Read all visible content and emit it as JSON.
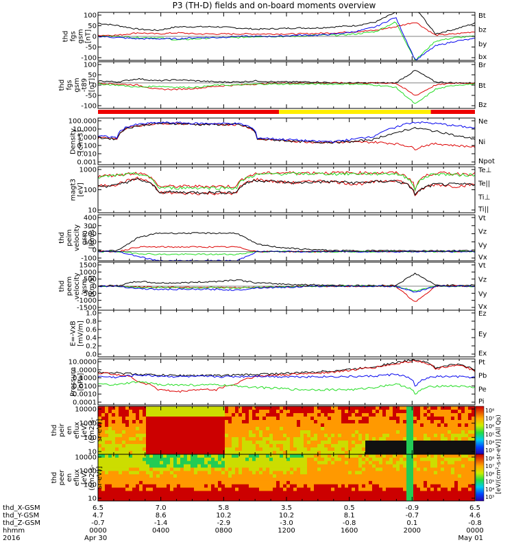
{
  "title": "P3 (TH-D) fields and on-board moments overview",
  "colors": {
    "black": "#000000",
    "red": "#dd0000",
    "green": "#22dd22",
    "blue": "#0000ee",
    "yellow": "#ffee00",
    "mode_red": "#ee0000"
  },
  "chart_data": [
    {
      "id": "fgs_gsm",
      "type": "line",
      "ylabel": [
        "thd",
        "fgs",
        "gsm",
        "[nT]"
      ],
      "ylim": [
        -100,
        100
      ],
      "yticks": [
        "100",
        "50",
        "0",
        "-50",
        "-100"
      ],
      "series": [
        {
          "name": "Bt",
          "color": "#000000",
          "values": [
            55,
            45,
            30,
            25,
            40,
            40,
            40,
            35,
            30,
            32,
            35,
            35,
            40,
            45,
            60,
            100,
            120,
            10,
            30,
            55
          ]
        },
        {
          "name": "bz",
          "color": "#dd0000",
          "values": [
            5,
            5,
            15,
            10,
            15,
            10,
            10,
            10,
            10,
            10,
            10,
            12,
            15,
            20,
            25,
            40,
            60,
            5,
            10,
            20
          ]
        },
        {
          "name": "by",
          "color": "#22dd22",
          "values": [
            0,
            0,
            -5,
            -5,
            -15,
            -10,
            -5,
            -5,
            0,
            0,
            0,
            5,
            5,
            10,
            20,
            60,
            -100,
            -20,
            -5,
            0
          ]
        },
        {
          "name": "bx",
          "color": "#0000ee",
          "values": [
            0,
            -5,
            -10,
            -10,
            -10,
            -5,
            -5,
            0,
            0,
            0,
            5,
            5,
            10,
            20,
            40,
            80,
            -100,
            -40,
            -20,
            -10
          ]
        }
      ]
    },
    {
      "id": "fgs_gsm_t89",
      "type": "line",
      "ylabel": [
        "thd",
        "fgs",
        "gsm",
        "-t89",
        "[nT]"
      ],
      "ylim": [
        -120,
        100
      ],
      "yticks": [
        "100",
        "50",
        "0",
        "-50",
        "-100"
      ],
      "series": [
        {
          "name": "Br",
          "color": "#000000",
          "values": [
            10,
            5,
            20,
            10,
            15,
            10,
            5,
            5,
            10,
            5,
            5,
            5,
            0,
            0,
            0,
            0,
            60,
            5,
            0,
            0
          ]
        },
        {
          "name": "Bt",
          "color": "#dd0000",
          "values": [
            0,
            -5,
            -10,
            -30,
            -30,
            -25,
            -15,
            -10,
            -5,
            0,
            0,
            0,
            0,
            0,
            0,
            0,
            -60,
            -10,
            0,
            0
          ]
        },
        {
          "name": "Bz",
          "color": "#22dd22",
          "values": [
            -5,
            -10,
            -20,
            -15,
            -20,
            -20,
            -10,
            -10,
            -5,
            -5,
            -5,
            -5,
            -5,
            -5,
            -10,
            -20,
            -100,
            -30,
            -10,
            -5
          ]
        }
      ]
    },
    {
      "id": "density",
      "type": "line",
      "scale": "log",
      "ylabel": [
        "Density",
        "[cm-3]"
      ],
      "ylim": [
        0.001,
        1000
      ],
      "yticks": [
        "100.000",
        "10.000",
        "1.000",
        "0.100",
        "0.010",
        "0.001"
      ],
      "series": [
        {
          "name": "Ne",
          "color": "#dd0000",
          "values": [
            3,
            2,
            100,
            200,
            200,
            150,
            150,
            150,
            2,
            1.5,
            1,
            0.8,
            0.8,
            0.8,
            0.8,
            0.5,
            0.1,
            0.5,
            0.3,
            0.2
          ]
        },
        {
          "name": "Ni",
          "color": "#000000",
          "values": [
            3,
            2,
            100,
            200,
            200,
            150,
            150,
            150,
            2,
            1.5,
            1,
            0.8,
            0.8,
            1,
            2,
            10,
            50,
            20,
            5,
            2
          ]
        },
        {
          "name": "Npot",
          "color": "#0000ee",
          "values": [
            5,
            3,
            150,
            250,
            250,
            200,
            200,
            200,
            3,
            2,
            1.5,
            1,
            1,
            2,
            5,
            50,
            300,
            200,
            100,
            50
          ]
        }
      ]
    },
    {
      "id": "magt3",
      "type": "line",
      "scale": "log",
      "ylabel": [
        "magt3",
        "[eV]"
      ],
      "ylim": [
        1,
        10000
      ],
      "yticks": [
        "1000",
        "100",
        "10"
      ],
      "series": [
        {
          "name": "Te⊥",
          "color": "#dd0000",
          "values": [
            200,
            300,
            1000,
            60,
            50,
            50,
            50,
            50,
            800,
            500,
            400,
            600,
            500,
            300,
            500,
            700,
            20,
            300,
            200,
            300
          ]
        },
        {
          "name": "Te||",
          "color": "#000000",
          "values": [
            200,
            250,
            800,
            70,
            60,
            60,
            60,
            60,
            700,
            500,
            400,
            500,
            500,
            400,
            500,
            600,
            30,
            300,
            300,
            300
          ]
        },
        {
          "name": "Ti⊥",
          "color": "#dd0000",
          "values": [
            1500,
            2000,
            3000,
            200,
            200,
            200,
            200,
            200,
            2500,
            3000,
            3000,
            3000,
            3000,
            3000,
            3000,
            3000,
            50,
            3000,
            2500,
            2500
          ]
        },
        {
          "name": "Ti||",
          "color": "#22dd22",
          "values": [
            1200,
            1800,
            2500,
            150,
            150,
            150,
            150,
            150,
            2000,
            2500,
            2500,
            2500,
            2500,
            2500,
            2500,
            2500,
            40,
            2500,
            2000,
            2000
          ]
        }
      ]
    },
    {
      "id": "peim_velocity",
      "type": "line",
      "ylabel": [
        "thd",
        "peim",
        "velocity",
        "gsm",
        "[km/s]"
      ],
      "ylim": [
        -100,
        400
      ],
      "yticks": [
        "400",
        "300",
        "200",
        "100",
        "0",
        "-100"
      ],
      "series": [
        {
          "name": "Vt",
          "color": "#000000",
          "values": [
            10,
            10,
            150,
            200,
            200,
            200,
            200,
            200,
            80,
            50,
            30,
            20,
            10,
            10,
            10,
            10,
            10,
            10,
            10,
            10
          ]
        },
        {
          "name": "Vz",
          "color": "#dd0000",
          "values": [
            0,
            0,
            50,
            50,
            50,
            50,
            50,
            50,
            0,
            0,
            0,
            0,
            0,
            0,
            0,
            0,
            0,
            0,
            0,
            0
          ]
        },
        {
          "name": "Vy",
          "color": "#22dd22",
          "values": [
            0,
            0,
            -20,
            -30,
            -30,
            -30,
            -30,
            -30,
            0,
            0,
            0,
            0,
            0,
            0,
            0,
            0,
            0,
            0,
            0,
            0
          ]
        },
        {
          "name": "Vx",
          "color": "#0000ee",
          "values": [
            0,
            0,
            -50,
            -100,
            -100,
            -100,
            -100,
            -100,
            0,
            0,
            0,
            0,
            0,
            0,
            0,
            0,
            0,
            0,
            0,
            0
          ]
        }
      ]
    },
    {
      "id": "peem_velocity",
      "type": "line",
      "ylabel": [
        "thd",
        "peem",
        "velocity",
        "gsm",
        "[km/s]"
      ],
      "ylim": [
        -1500,
        1500
      ],
      "yticks": [
        "1500",
        "1000",
        "500",
        "0",
        "-500",
        "-1000",
        "-1500"
      ],
      "series": [
        {
          "name": "Vt",
          "color": "#000000",
          "values": [
            20,
            30,
            300,
            200,
            200,
            250,
            300,
            400,
            200,
            150,
            100,
            80,
            60,
            40,
            40,
            50,
            800,
            60,
            60,
            60
          ]
        },
        {
          "name": "Vz",
          "color": "#dd0000",
          "values": [
            0,
            0,
            -50,
            -60,
            -60,
            -60,
            -80,
            -100,
            -80,
            -50,
            -20,
            0,
            0,
            0,
            0,
            0,
            -1000,
            0,
            0,
            0
          ]
        },
        {
          "name": "Vy",
          "color": "#22dd22",
          "values": [
            0,
            0,
            -80,
            -100,
            -100,
            -100,
            -100,
            -120,
            -60,
            -40,
            -20,
            0,
            0,
            0,
            0,
            0,
            -300,
            0,
            0,
            0
          ]
        },
        {
          "name": "Vx",
          "color": "#0000ee",
          "values": [
            0,
            0,
            -150,
            -200,
            -200,
            -200,
            -200,
            -250,
            -100,
            -80,
            -50,
            0,
            0,
            0,
            0,
            0,
            -400,
            0,
            0,
            0
          ]
        }
      ]
    },
    {
      "id": "efield",
      "type": "line",
      "ylabel": [
        "E=-VxB",
        "[mV/m]"
      ],
      "ylim": [
        0,
        1.0
      ],
      "yticks": [
        "1.0",
        "0.8",
        "0.6",
        "0.4",
        "0.2",
        "0.0"
      ],
      "series": [
        {
          "name": "Ez",
          "color": "#dd0000",
          "values": []
        },
        {
          "name": "Ey",
          "color": "#22dd22",
          "values": []
        },
        {
          "name": "Ex",
          "color": "#0000ee",
          "values": []
        }
      ]
    },
    {
      "id": "pressure",
      "type": "line",
      "scale": "log",
      "ylabel": [
        "Pressure",
        "[nPa]"
      ],
      "ylim": [
        0.0001,
        100
      ],
      "yticks": [
        "10.0000",
        "1.0000",
        "0.1000",
        "0.0100",
        "0.0010",
        "0.0001"
      ],
      "series": [
        {
          "name": "Pt",
          "color": "#000000",
          "values": [
            2,
            1.5,
            1,
            0.8,
            0.7,
            0.7,
            0.7,
            0.8,
            1,
            1.2,
            1.5,
            2,
            3,
            5,
            10,
            30,
            80,
            5,
            20,
            3
          ]
        },
        {
          "name": "Pb",
          "color": "#dd0000",
          "values": [
            1.5,
            1,
            0.1,
            0.01,
            0.005,
            0.01,
            0.01,
            0.05,
            0.5,
            0.8,
            1,
            1.5,
            2,
            4,
            8,
            20,
            60,
            4,
            15,
            2
          ]
        },
        {
          "name": "Pe",
          "color": "#22dd22",
          "values": [
            0.05,
            0.04,
            0.1,
            0.05,
            0.04,
            0.04,
            0.04,
            0.03,
            0.02,
            0.015,
            0.01,
            0.01,
            0.01,
            0.01,
            0.02,
            0.05,
            0.001,
            0.03,
            0.03,
            0.02
          ]
        },
        {
          "name": "Pi",
          "color": "#0000ee",
          "values": [
            0.5,
            0.4,
            0.8,
            0.6,
            0.5,
            0.5,
            0.5,
            0.5,
            0.6,
            0.5,
            0.5,
            0.5,
            0.5,
            0.5,
            0.6,
            1,
            0.001,
            0.5,
            0.5,
            0.4
          ]
        }
      ]
    },
    {
      "id": "peir_eflux",
      "type": "heatmap",
      "scale": "log",
      "ylabel": [
        "thd",
        "peir",
        "en",
        "eflux",
        "[eV/",
        "(cm2-s-",
        "sr-eV)]"
      ],
      "ylim": [
        5,
        30000
      ],
      "yticks": [
        "10000",
        "1000",
        "100",
        "10"
      ],
      "colorbar_ticks": [
        "10⁸",
        "10⁷",
        "10⁶",
        "10⁵",
        "10⁴",
        "10³"
      ],
      "colorbar_label": "[eV/(cm²-s-sr-eV)] (All Qs)"
    },
    {
      "id": "peer_eflux",
      "type": "heatmap",
      "scale": "log",
      "ylabel": [
        "thd",
        "peer",
        "en",
        "eflux",
        "[eV/",
        "(cm2-s-",
        "sr-eV)]"
      ],
      "ylim": [
        5,
        30000
      ],
      "yticks": [
        "10000",
        "1000",
        "100",
        "10"
      ],
      "colorbar_ticks": [
        "10⁸",
        "10⁷",
        "10⁶",
        "10⁵",
        "10⁴",
        "10³"
      ],
      "colorbar_label": "[eV/(cm²-s-sr-eV)] (All Qs)"
    }
  ],
  "mode_bar": [
    {
      "color": "#ee0000",
      "from": 0,
      "to": 0.48
    },
    {
      "color": "#ffee00",
      "from": 0.48,
      "to": 0.883
    },
    {
      "color": "#ee0000",
      "from": 0.883,
      "to": 1
    }
  ],
  "ephemeris": {
    "labels": [
      "thd_X-GSM",
      "thd_Y-GSM",
      "thd_Z-GSM",
      "hhmm",
      "2016"
    ],
    "ticks": [
      {
        "x": "6.5",
        "y": "4.7",
        "z": "-0.7",
        "hhmm": "0000",
        "date": "Apr 30"
      },
      {
        "x": "7.0",
        "y": "8.6",
        "z": "-1.4",
        "hhmm": "0400",
        "date": ""
      },
      {
        "x": "5.8",
        "y": "10.2",
        "z": "-2.9",
        "hhmm": "0800",
        "date": ""
      },
      {
        "x": "3.5",
        "y": "10.2",
        "z": "-3.0",
        "hhmm": "1200",
        "date": ""
      },
      {
        "x": "0.5",
        "y": "8.1",
        "z": "-0.8",
        "hhmm": "1600",
        "date": ""
      },
      {
        "x": "-0.9",
        "y": "-0.7",
        "z": "0.1",
        "hhmm": "2000",
        "date": ""
      },
      {
        "x": "6.5",
        "y": "4.6",
        "z": "-0.8",
        "hhmm": "0000",
        "date": "May 01"
      }
    ]
  }
}
